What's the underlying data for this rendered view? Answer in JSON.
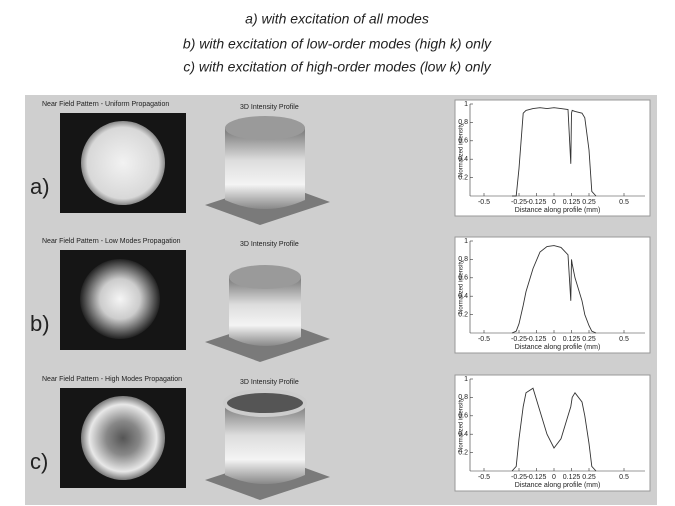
{
  "caption": {
    "lines": [
      "a) with excitation of all modes",
      "b) with excitation of low-order modes (high k) only",
      "c) with excitation of high-order modes (low k) only"
    ]
  },
  "rows": [
    {
      "label": "a)",
      "near_field_title": "Near Field Pattern -  Uniform  Propagation",
      "profile_title": "3D Intensity Profile",
      "plot": {
        "type": "line",
        "xlabel": "Distance along profile (mm)",
        "ylabel": "Normalized intensity",
        "xlim": [
          -0.6,
          0.65
        ],
        "ylim": [
          0,
          1
        ],
        "xticks": [
          -0.5,
          -0.25,
          -0.125,
          0,
          0.125,
          0.25,
          0.5
        ],
        "yticks": [
          0.2,
          0.4,
          0.6,
          0.8,
          1
        ],
        "x": [
          -0.3,
          -0.27,
          -0.25,
          -0.22,
          -0.2,
          -0.15,
          -0.1,
          -0.05,
          0,
          0.05,
          0.1,
          0.12,
          0.125,
          0.13,
          0.15,
          0.2,
          0.22,
          0.25,
          0.27,
          0.3
        ],
        "values": [
          0,
          0,
          0.3,
          0.9,
          0.93,
          0.95,
          0.96,
          0.95,
          0.96,
          0.95,
          0.94,
          0.35,
          0.9,
          0.93,
          0.92,
          0.9,
          0.85,
          0.5,
          0.05,
          0
        ]
      }
    },
    {
      "label": "b)",
      "near_field_title": "Near Field Pattern - Low Modes Propagation",
      "profile_title": "3D Intensity Profile",
      "plot": {
        "type": "line",
        "xlabel": "Distance along profile (mm)",
        "ylabel": "Normalized intensity",
        "xlim": [
          -0.6,
          0.65
        ],
        "ylim": [
          0,
          1
        ],
        "xticks": [
          -0.5,
          -0.25,
          -0.125,
          0,
          0.125,
          0.25,
          0.5
        ],
        "yticks": [
          0.2,
          0.4,
          0.6,
          0.8,
          1
        ],
        "x": [
          -0.3,
          -0.27,
          -0.25,
          -0.22,
          -0.2,
          -0.15,
          -0.1,
          -0.05,
          0,
          0.05,
          0.1,
          0.12,
          0.125,
          0.13,
          0.15,
          0.2,
          0.22,
          0.25,
          0.27,
          0.3
        ],
        "values": [
          0,
          0.02,
          0.1,
          0.3,
          0.45,
          0.7,
          0.88,
          0.94,
          0.95,
          0.93,
          0.85,
          0.35,
          0.8,
          0.75,
          0.6,
          0.35,
          0.2,
          0.08,
          0.02,
          0
        ]
      }
    },
    {
      "label": "c)",
      "near_field_title": "Near Field Pattern - High Modes Propagation",
      "profile_title": "3D Intensity Profile",
      "plot": {
        "type": "line",
        "xlabel": "Distance along profile (mm)",
        "ylabel": "Normalized intensity",
        "xlim": [
          -0.6,
          0.65
        ],
        "ylim": [
          0,
          1
        ],
        "xticks": [
          -0.5,
          -0.25,
          -0.125,
          0,
          0.125,
          0.25,
          0.5
        ],
        "yticks": [
          0.2,
          0.4,
          0.6,
          0.8,
          1
        ],
        "x": [
          -0.3,
          -0.27,
          -0.25,
          -0.22,
          -0.2,
          -0.15,
          -0.1,
          -0.05,
          0,
          0.05,
          0.1,
          0.12,
          0.125,
          0.13,
          0.15,
          0.2,
          0.22,
          0.25,
          0.27,
          0.3
        ],
        "values": [
          0,
          0.05,
          0.35,
          0.7,
          0.85,
          0.9,
          0.65,
          0.4,
          0.25,
          0.35,
          0.6,
          0.7,
          0.75,
          0.8,
          0.85,
          0.75,
          0.6,
          0.3,
          0.05,
          0
        ]
      }
    }
  ]
}
